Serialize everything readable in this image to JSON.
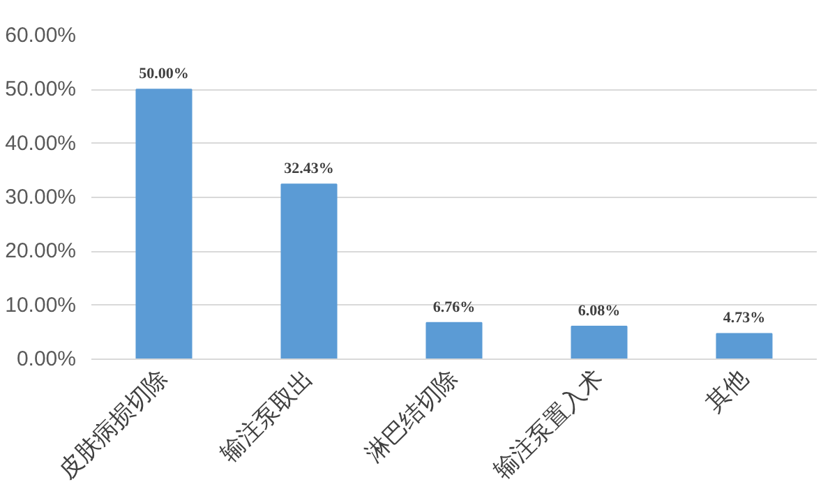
{
  "chart_data": {
    "type": "bar",
    "categories": [
      "皮肤病损切除",
      "输注泵取出",
      "淋巴结切除",
      "输注泵置入术",
      "其他"
    ],
    "values": [
      50,
      32.43,
      6.76,
      6.08,
      4.73
    ],
    "value_labels": [
      "50.00%",
      "32.43%",
      "6.76%",
      "6.08%",
      "4.73%"
    ],
    "color": "#5b9bd5",
    "ylim": [
      0,
      60
    ],
    "yticks": [
      {
        "value": 0,
        "label": "0.00%"
      },
      {
        "value": 10,
        "label": "10.00%"
      },
      {
        "value": 20,
        "label": "20.00%"
      },
      {
        "value": 30,
        "label": "30.00%"
      },
      {
        "value": 40,
        "label": "40.00%"
      },
      {
        "value": 50,
        "label": "50.00%"
      },
      {
        "value": 60,
        "label": "60.00%"
      }
    ],
    "grid": "y"
  }
}
